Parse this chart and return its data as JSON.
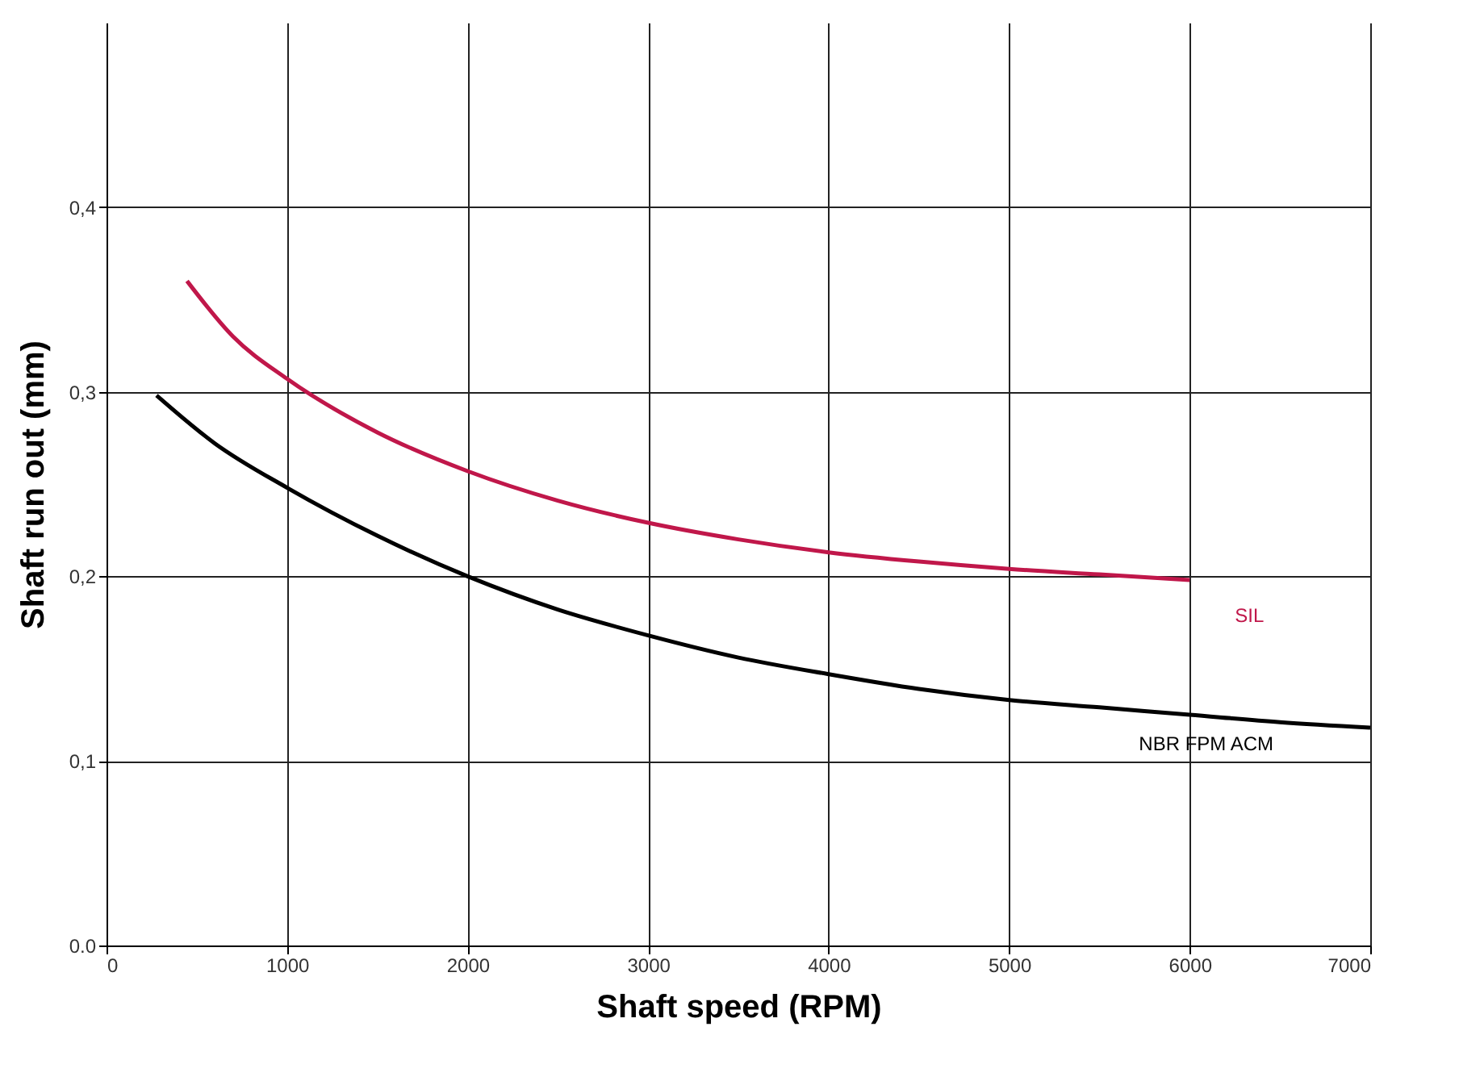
{
  "chart_data": {
    "type": "line",
    "xlabel": "Shaft speed (RPM)",
    "ylabel": "Shaft run out (mm)",
    "xlim": [
      0,
      7000
    ],
    "xticks": [
      0,
      1000,
      2000,
      3000,
      4000,
      5000,
      6000,
      7000
    ],
    "ylim": [
      0,
      0.5
    ],
    "yticks": [
      {
        "value": 0,
        "label": "0.0"
      },
      {
        "value": 0.1,
        "label": "0,1"
      },
      {
        "value": 0.2,
        "label": "0,2"
      },
      {
        "value": 0.3,
        "label": "0,3"
      },
      {
        "value": 0.4,
        "label": "0,4"
      }
    ],
    "grid": true,
    "legend": false,
    "marker": "none",
    "line_style": "solid",
    "series": [
      {
        "name": "SIL",
        "color": "#c0174a",
        "x": [
          446,
          700,
          1000,
          1500,
          2000,
          2500,
          3000,
          3500,
          4000,
          4500,
          5000,
          5500,
          6000
        ],
        "values": [
          0.36,
          0.33,
          0.307,
          0.278,
          0.257,
          0.241,
          0.229,
          0.22,
          0.213,
          0.208,
          0.204,
          0.201,
          0.198
        ]
      },
      {
        "name": "NBR FPM ACM",
        "color": "#000000",
        "x": [
          277,
          600,
          1000,
          1500,
          2000,
          2500,
          3000,
          3500,
          4000,
          4500,
          5000,
          5500,
          6000,
          6500,
          7000
        ],
        "values": [
          0.298,
          0.272,
          0.248,
          0.222,
          0.2,
          0.182,
          0.168,
          0.156,
          0.147,
          0.139,
          0.133,
          0.129,
          0.125,
          0.121,
          0.118
        ]
      }
    ]
  }
}
